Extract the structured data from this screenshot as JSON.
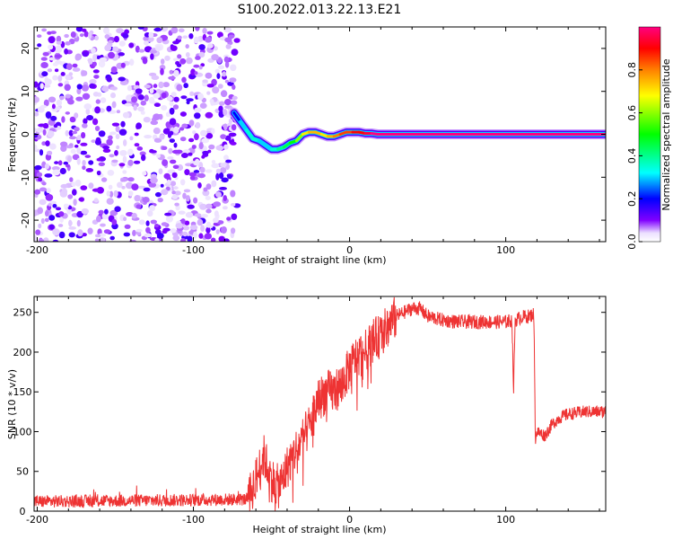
{
  "chart_data": [
    {
      "type": "heatmap",
      "title": "S100.2022.013.22.13.E21",
      "xlabel": "Height of straight line (km)",
      "ylabel": "Frequency (Hz)",
      "xlim": [
        -202,
        164
      ],
      "ylim": [
        -25,
        25
      ],
      "xticks": [
        -200,
        -100,
        0,
        100
      ],
      "yticks": [
        -20,
        -10,
        0,
        10,
        20
      ],
      "colorbar": {
        "label": "Normalized spectral amplitude",
        "range": [
          0.0,
          1.0
        ],
        "ticks": [
          0.0,
          0.2,
          0.4,
          0.6,
          0.8
        ],
        "tick_labels": [
          "0.0",
          "0.2",
          "0.4",
          "0.6",
          "0.8"
        ],
        "colormap": [
          "#ffffff",
          "#8000ff",
          "#0000ff",
          "#00ffff",
          "#00ff00",
          "#ffff00",
          "#ff8000",
          "#ff0000",
          "#ff0080"
        ]
      },
      "noise_region_x": [
        -202,
        -72
      ],
      "noise_amplitude_range": [
        0.0,
        0.15
      ],
      "signal_ridge": {
        "x": [
          -74,
          -70,
          -66,
          -62,
          -58,
          -54,
          -50,
          -46,
          -42,
          -38,
          -34,
          -30,
          -26,
          -22,
          -18,
          -14,
          -10,
          -6,
          -2,
          2,
          6,
          10,
          14,
          18,
          22,
          164
        ],
        "freq": [
          5,
          3,
          1,
          -1,
          -1.5,
          -2.5,
          -3.5,
          -3.5,
          -3,
          -2,
          -1.5,
          0,
          0.5,
          0.5,
          0,
          -0.5,
          -0.5,
          0,
          0.5,
          0.5,
          0.5,
          0.2,
          0.2,
          0,
          0,
          0
        ],
        "amplitude": [
          0.15,
          0.2,
          0.3,
          0.35,
          0.35,
          0.3,
          0.3,
          0.35,
          0.4,
          0.45,
          0.5,
          0.6,
          0.7,
          0.75,
          0.75,
          0.7,
          0.75,
          0.8,
          0.85,
          0.85,
          0.9,
          0.9,
          0.95,
          1.0,
          1.0,
          1.0
        ]
      }
    },
    {
      "type": "line",
      "xlabel": "Height of straight line (km)",
      "ylabel": "SNR (10 * v/v)",
      "xlim": [
        -202,
        164
      ],
      "ylim": [
        0,
        270
      ],
      "xticks": [
        -200,
        -100,
        0,
        100
      ],
      "yticks": [
        0,
        50,
        100,
        150,
        200,
        250
      ],
      "color": "#ee3333",
      "x": [
        -202,
        -150,
        -100,
        -65,
        -60,
        -55,
        -50,
        -45,
        -40,
        -35,
        -30,
        -25,
        -20,
        -15,
        -10,
        -5,
        0,
        5,
        10,
        15,
        20,
        25,
        30,
        35,
        40,
        45,
        50,
        60,
        70,
        80,
        90,
        100,
        104,
        105,
        106,
        108,
        110,
        115,
        118,
        119,
        120,
        125,
        130,
        135,
        140,
        150,
        164
      ],
      "y": [
        12,
        13,
        14,
        15,
        40,
        70,
        40,
        30,
        55,
        75,
        90,
        110,
        140,
        150,
        150,
        160,
        180,
        195,
        200,
        215,
        220,
        235,
        245,
        250,
        255,
        255,
        245,
        240,
        238,
        238,
        238,
        238,
        240,
        150,
        240,
        242,
        244,
        245,
        248,
        90,
        100,
        95,
        110,
        118,
        122,
        125,
        125
      ],
      "noise_amplitude": 8
    }
  ]
}
